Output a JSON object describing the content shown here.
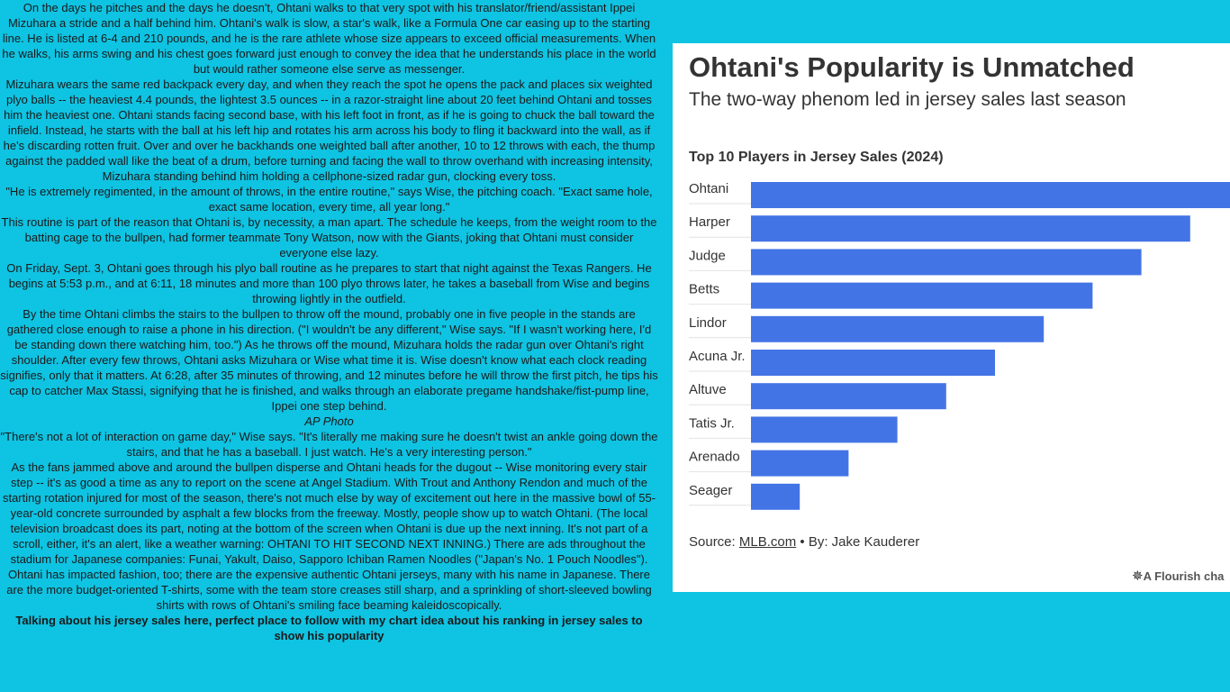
{
  "article": {
    "paragraphs": [
      "On the days he pitches and the days he doesn't, Ohtani walks to that very spot with his translator/friend/assistant Ippei Mizuhara a stride and a half behind him. Ohtani's walk is slow, a star's walk, like a Formula One car easing up to the starting line. He is listed at 6-4 and 210 pounds, and he is the rare athlete whose size appears to exceed official measurements. When he walks, his arms swing and his chest goes forward just enough to convey the idea that he understands his place in the world but would rather someone else serve as messenger.",
      "Mizuhara wears the same red backpack every day, and when they reach the spot he opens the pack and places six weighted plyo balls -- the heaviest 4.4 pounds, the lightest 3.5 ounces -- in a razor-straight line about 20 feet behind Ohtani and tosses him the heaviest one. Ohtani stands facing second base, with his left foot in front, as if he is going to chuck the ball toward the infield. Instead, he starts with the ball at his left hip and rotates his arm across his body to fling it backward into the wall, as if he's discarding rotten fruit. Over and over he backhands one weighted ball after another, 10 to 12 throws with each, the thump against the padded wall like the beat of a drum, before turning and facing the wall to throw overhand with increasing intensity, Mizuhara standing behind him holding a cellphone-sized radar gun, clocking every toss.",
      "\"He is extremely regimented, in the amount of throws, in the entire routine,\" says Wise, the pitching coach. \"Exact same hole, exact same location, every time, all year long.\"",
      "This routine is part of the reason that Ohtani is, by necessity, a man apart. The schedule he keeps, from the weight room to the batting cage to the bullpen, had former teammate Tony Watson, now with the Giants, joking that Ohtani must consider everyone else lazy.",
      "On Friday, Sept. 3, Ohtani goes through his plyo ball routine as he prepares to start that night against the Texas Rangers. He begins at 5:53 p.m., and at 6:11, 18 minutes and more than 100 plyo throws later, he takes a baseball from Wise and begins throwing lightly in the outfield.",
      "By the time Ohtani climbs the stairs to the bullpen to throw off the mound, probably one in five people in the stands are gathered close enough to raise a phone in his direction. (\"I wouldn't be any different,\" Wise says. \"If I wasn't working here, I'd be standing down there watching him, too.\") As he throws off the mound, Mizuhara holds the radar gun over Ohtani's right shoulder. After every few throws, Ohtani asks Mizuhara or Wise what time it is. Wise doesn't know what each clock reading signifies, only that it matters. At 6:28, after 35 minutes of throwing, and 12 minutes before he will throw the first pitch, he tips his cap to catcher Max Stassi, signifying that he is finished, and walks through an elaborate pregame handshake/fist-pump line, Ippei one step behind."
    ],
    "photo_caption": "AP Photo",
    "paragraphs_after": [
      "\"There's not a lot of interaction on game day,\" Wise says. \"It's literally me making sure he doesn't twist an ankle going down the stairs, and that he has a baseball. I just watch. He's a very interesting person.\"",
      "As the fans jammed above and around the bullpen disperse and Ohtani heads for the dugout -- Wise monitoring every stair step -- it's as good a time as any to report on the scene at Angel Stadium. With Trout and Anthony Rendon and much of the starting rotation injured for most of the season, there's not much else by way of excitement out here in the massive bowl of 55-year-old concrete surrounded by asphalt a few blocks from the freeway. Mostly, people show up to watch Ohtani. (The local television broadcast does its part, noting at the bottom of the screen when Ohtani is due up the next inning. It's not part of a scroll, either, it's an alert, like a weather warning: OHTANI TO HIT SECOND NEXT INNING.) There are ads throughout the stadium for Japanese companies: Funai, Yakult, Daiso, Sapporo Ichiban Ramen Noodles (\"Japan's No. 1 Pouch Noodles\"). Ohtani has impacted fashion, too; there are the expensive authentic Ohtani jerseys, many with his name in Japanese. There are the more budget-oriented T-shirts, some with the team store creases still sharp, and a sprinkling of short-sleeved bowling shirts with rows of Ohtani's smiling face beaming kaleidoscopically."
    ],
    "author_note": "Talking about his jersey sales here, perfect place to follow with my chart idea about his ranking in jersey sales to show his popularity"
  },
  "card": {
    "title": "Ohtani's Popularity is Unmatched",
    "subtitle": "The two-way phenom led in jersey sales last season",
    "source_prefix": "Source: ",
    "source_link": "MLB.com",
    "source_suffix": " • By: Jake Kauderer",
    "flourish_credit": "A Flourish cha",
    "flourish_icon": "flourish-star-icon"
  },
  "chart_data": {
    "type": "bar",
    "orientation": "horizontal",
    "title": "Top 10 Players in Jersey Sales (2024)",
    "categories": [
      "Ohtani",
      "Harper",
      "Judge",
      "Betts",
      "Lindor",
      "Acuna Jr.",
      "Altuve",
      "Tatis Jr.",
      "Arenado",
      "Seager"
    ],
    "values": [
      10,
      9,
      8,
      7,
      6,
      5,
      4,
      3,
      2,
      1
    ],
    "xlim": [
      0,
      10
    ],
    "bar_color": "#4374e6",
    "grid": false,
    "legend": "none"
  }
}
